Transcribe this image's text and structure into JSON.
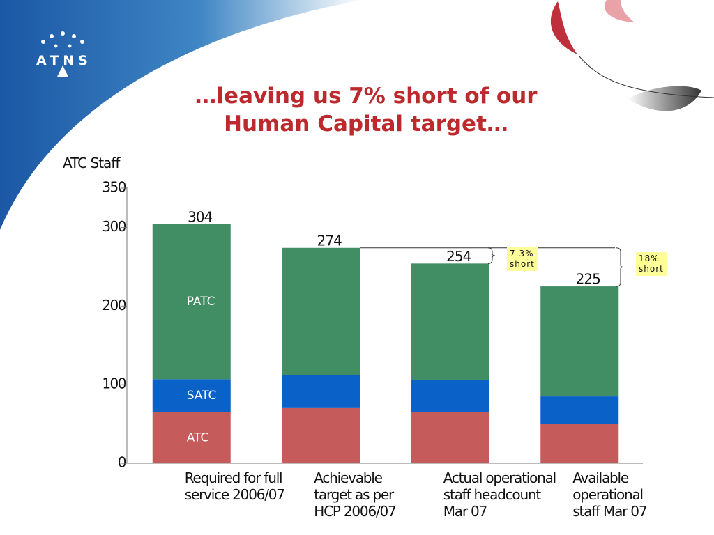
{
  "logo": "ATNS",
  "chart_data": {
    "type": "stacked-bar",
    "title": "…leaving us 7% short of our\nHuman Capital target…",
    "y_label": "ATC Staff",
    "categories": [
      "Required for full\nservice 2006/07",
      "Achievable\ntarget as per\nHCP 2006/07",
      "Actual operational\nstaff headcount\nMar 07",
      "Available\noperational\nstaff Mar 07"
    ],
    "series": [
      {
        "name": "ATC",
        "color": "#c65b5b",
        "values": [
          65,
          71,
          65,
          50
        ]
      },
      {
        "name": "SATC",
        "color": "#0a62c9",
        "values": [
          42,
          41,
          41,
          35
        ]
      },
      {
        "name": "PATC",
        "color": "#418e64",
        "values": [
          197,
          162,
          148,
          140
        ]
      }
    ],
    "totals": [
      304,
      274,
      254,
      225
    ],
    "annotations": [
      "7.3%\nshort",
      "18%\nshort"
    ],
    "ylim": [
      0,
      350
    ],
    "yticks": [
      0,
      100,
      200,
      300,
      350
    ]
  }
}
